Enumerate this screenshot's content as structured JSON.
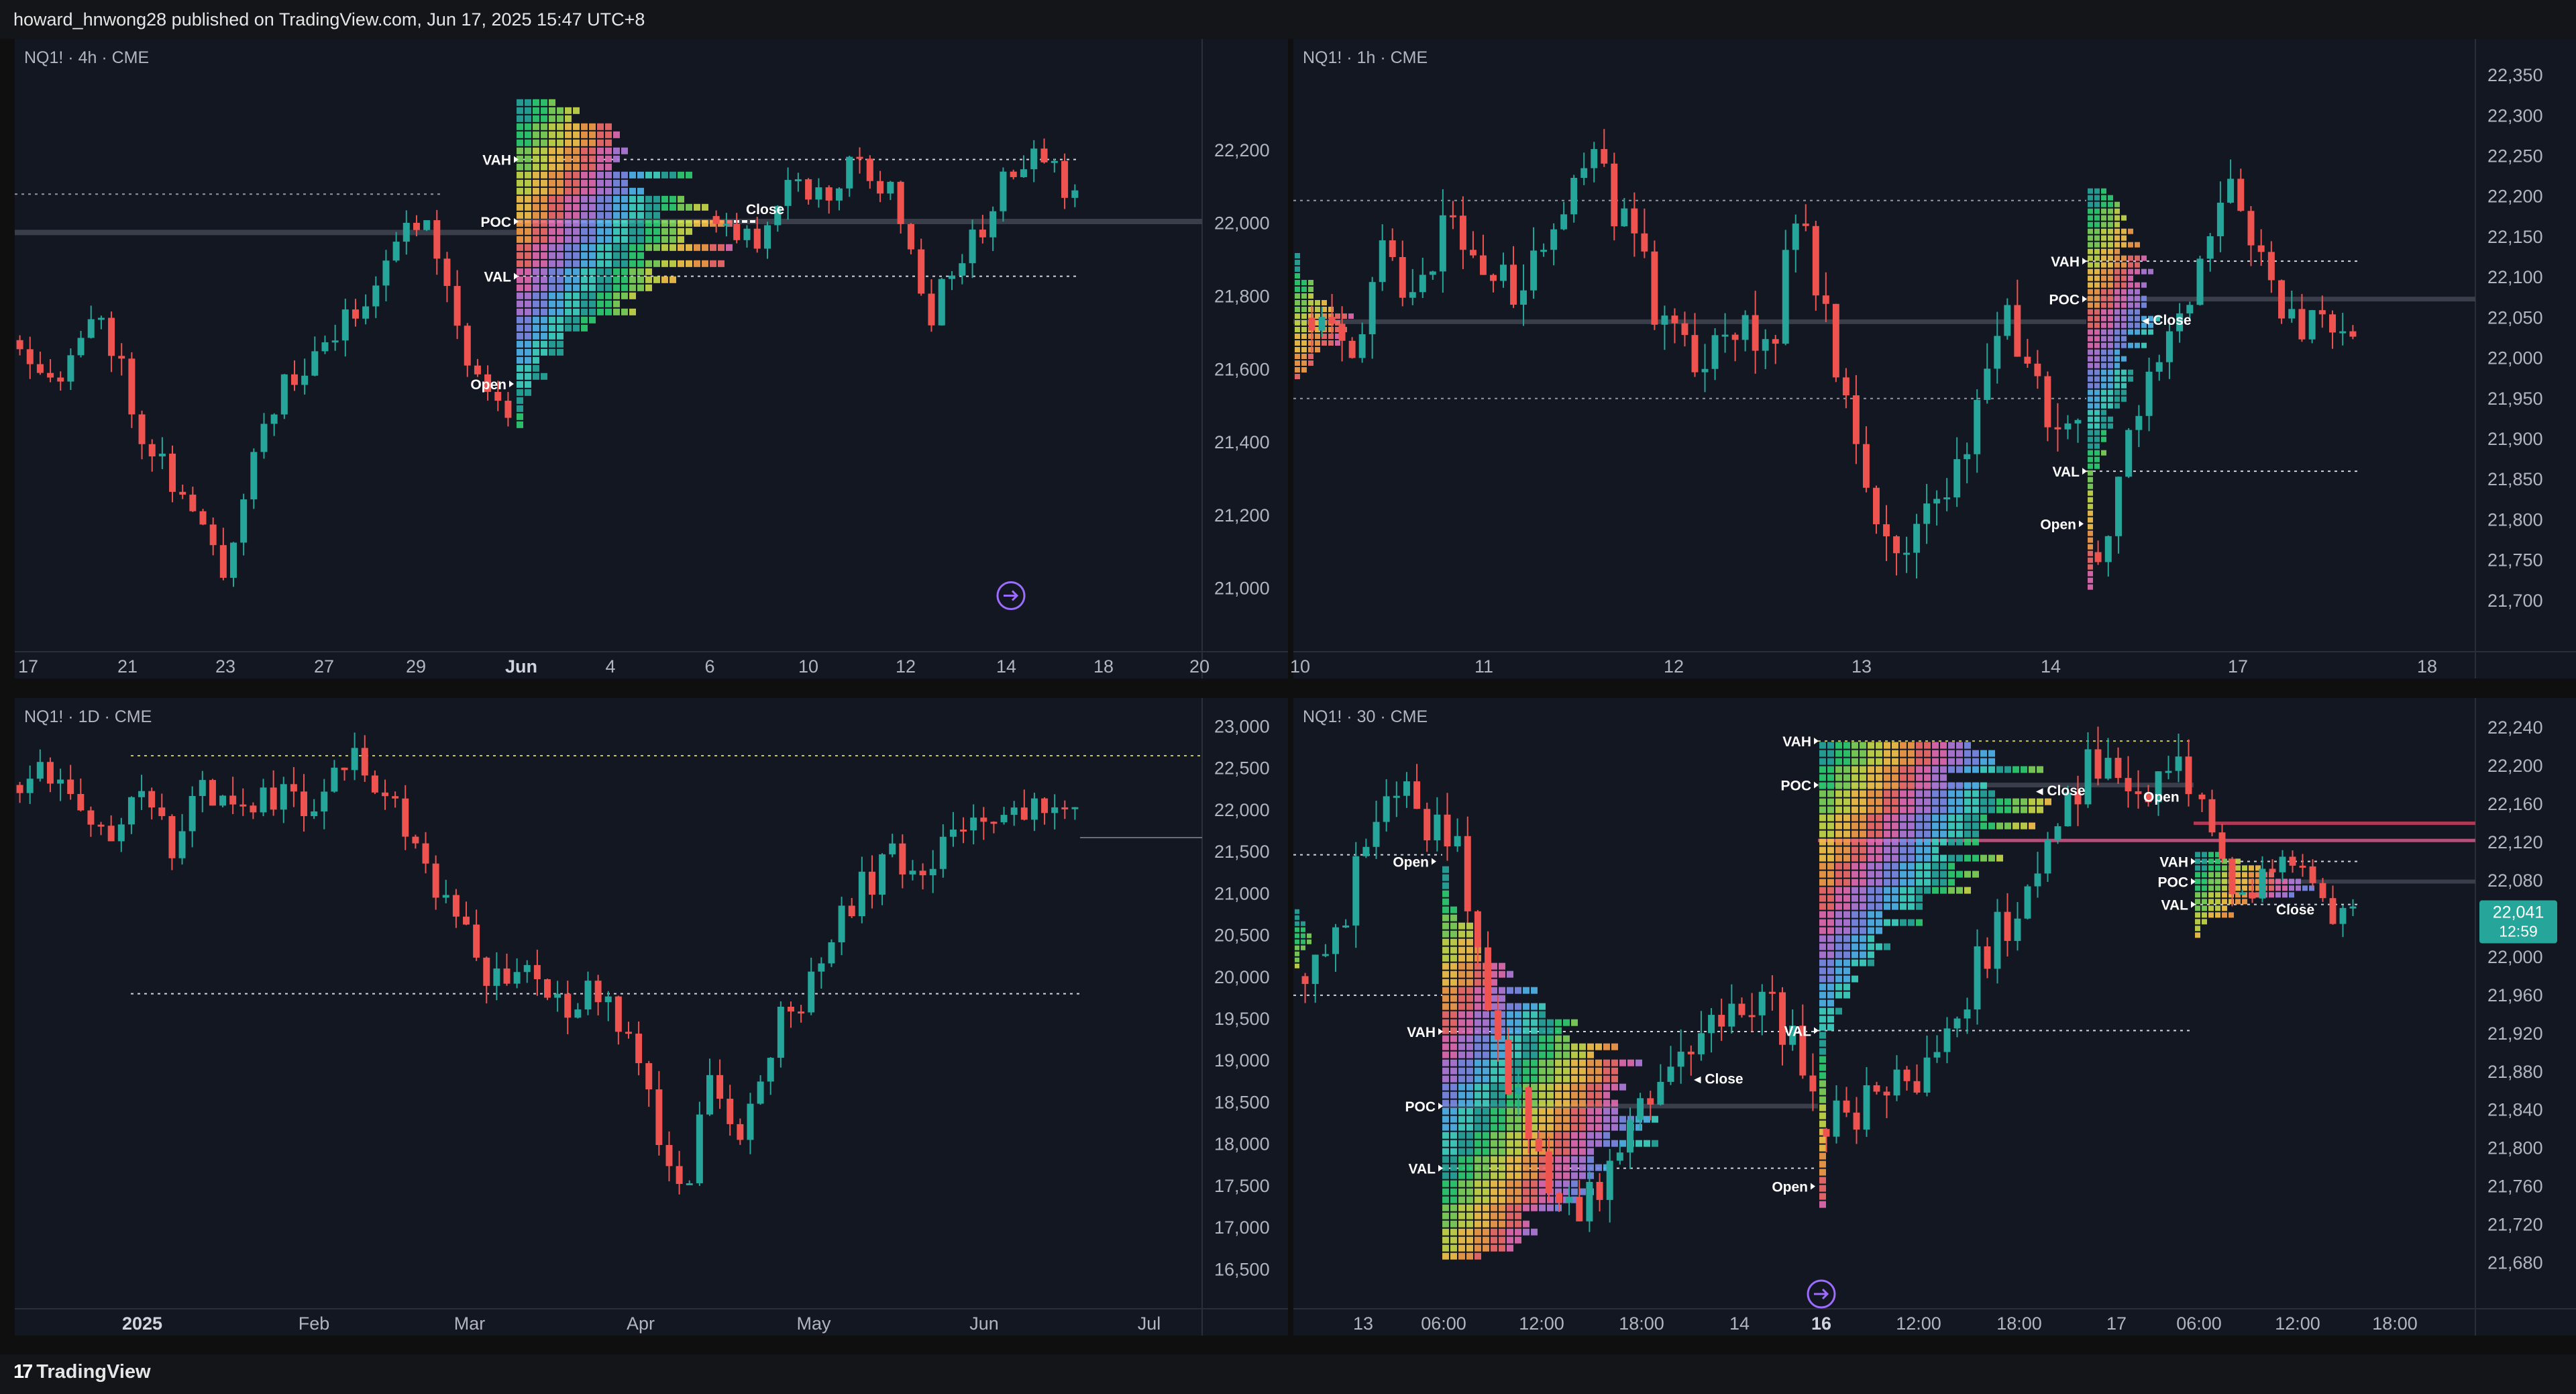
{
  "header": {
    "attribution": "howard_hnwong28 published on TradingView.com, Jun 17, 2025 15:47 UTC+8"
  },
  "footer": {
    "brand": "TradingView"
  },
  "icons": {
    "logo": "tradingview-logo-icon",
    "replay": "replay-arrow-icon"
  },
  "colors": {
    "up": "#26a69a",
    "down": "#ef5350",
    "background": "#131722",
    "priceTag": "#26a69a"
  },
  "chart_data": [
    {
      "type": "candlestick",
      "title": "NQ1! · 4h · CME",
      "x_ticks": [
        "17",
        "21",
        "23",
        "27",
        "29",
        "Jun",
        "4",
        "6",
        "10",
        "12",
        "14",
        "18",
        "20"
      ],
      "y_ticks": [
        "22,200",
        "22,000",
        "21,800",
        "21,600",
        "21,400",
        "21,200",
        "21,000"
      ],
      "ylim": [
        20900,
        22450
      ],
      "profile_labels": [
        "VAH",
        "POC",
        "VAL",
        "Open",
        "Close"
      ],
      "levels": {
        "VAH": 22175,
        "POC": 22005,
        "VAL": 21855,
        "prior": 22080,
        "low": 21975
      },
      "segments": [
        [
          21680,
          21580,
          21760,
          21440,
          21250,
          21050,
          21480,
          21600,
          21720,
          21900,
          22050,
          21620,
          21490
        ],
        [
          22020,
          21940,
          22120,
          22060,
          22180,
          22060,
          21760,
          21920,
          22100,
          22180,
          22080
        ]
      ]
    },
    {
      "type": "candlestick",
      "title": "NQ1! · 1h · CME",
      "x_ticks": [
        "10",
        "11",
        "12",
        "13",
        "14",
        "17",
        "18"
      ],
      "y_ticks": [
        "22,350",
        "22,300",
        "22,250",
        "22,200",
        "22,150",
        "22,100",
        "22,050",
        "22,000",
        "21,950",
        "21,900",
        "21,850",
        "21,800",
        "21,750",
        "21,700"
      ],
      "ylim": [
        21670,
        22370
      ],
      "profile_labels": [
        "VAH",
        "POC",
        "VAL",
        "Open",
        "Close"
      ],
      "levels": {
        "VAH": 22120,
        "POC": 22073,
        "VAL": 21860,
        "prior_high": 22195,
        "prior_poc": 22045,
        "prior_low": 21950
      },
      "segments": [
        [
          22050,
          21990,
          22140,
          22050,
          22180,
          22120,
          22090,
          22170,
          22290,
          22150,
          22060,
          21980,
          22050,
          21990,
          22180,
          21990,
          21800,
          21780,
          21840,
          21920,
          22060,
          21940,
          21900
        ],
        [
          21760,
          21900,
          22000,
          22080,
          22210,
          22150,
          22040,
          22060,
          22030
        ]
      ]
    },
    {
      "type": "candlestick",
      "title": "NQ1! · 1D · CME",
      "x_ticks": [
        "2025",
        "Feb",
        "Mar",
        "Apr",
        "May",
        "Jun",
        "Jul"
      ],
      "y_ticks": [
        "23,000",
        "22,500",
        "22,000",
        "21,500",
        "21,000",
        "20,500",
        "20,000",
        "19,500",
        "19,000",
        "18,500",
        "18,000",
        "17,500",
        "17,000",
        "16,500"
      ],
      "ylim": [
        16350,
        23100
      ],
      "levels": {
        "high": 22650,
        "mid": 21670,
        "low": 19800
      },
      "segments": [
        [
          22300,
          22500,
          22000,
          21800,
          22100,
          21600,
          22200,
          21900,
          22300,
          22050,
          22200,
          22550,
          22350,
          21600,
          20900,
          20300,
          19900,
          20200,
          19600,
          20000,
          19300,
          18400,
          17400,
          18800,
          18000,
          19300,
          19800,
          20700,
          21100,
          21400,
          21300,
          21700,
          21800,
          22000,
          21900,
          21950
        ]
      ]
    },
    {
      "type": "candlestick",
      "title": "NQ1! · 30 · CME",
      "x_ticks": [
        "13",
        "06:00",
        "12:00",
        "18:00",
        "14",
        "16",
        "12:00",
        "18:00",
        "17",
        "06:00",
        "12:00",
        "18:00"
      ],
      "y_ticks": [
        "22,240",
        "22,200",
        "22,160",
        "22,120",
        "22,080",
        "22,040",
        "22,000",
        "21,960",
        "21,920",
        "21,880",
        "21,840",
        "21,800",
        "21,760",
        "21,720",
        "21,680"
      ],
      "ylim": [
        21660,
        22250
      ],
      "price_tag": {
        "price": "22,041",
        "countdown": "12:59"
      },
      "profile_labels": [
        "VAH",
        "POC",
        "VAL",
        "Open",
        "Close"
      ],
      "levels": {
        "A_VAH": 21922,
        "A_POC": 21844,
        "A_VAL": 21779,
        "B_VAH": 22226,
        "B_POC": 22180,
        "B_VAL": 21923,
        "C_VAH": 22100,
        "C_POC": 22079,
        "C_VAL": 22055,
        "red": 22140,
        "purple": 22122
      },
      "segments": [
        [
          21980,
          22050,
          22180,
          22150,
          22100,
          21900,
          21780,
          21720,
          21800,
          21850,
          21900,
          21960,
          21950,
          21860
        ],
        [
          21820,
          21860,
          21880,
          22000,
          22080,
          22200,
          22180,
          22190
        ],
        [
          22170,
          22060,
          22080,
          22100,
          22050,
          22040
        ]
      ]
    }
  ]
}
